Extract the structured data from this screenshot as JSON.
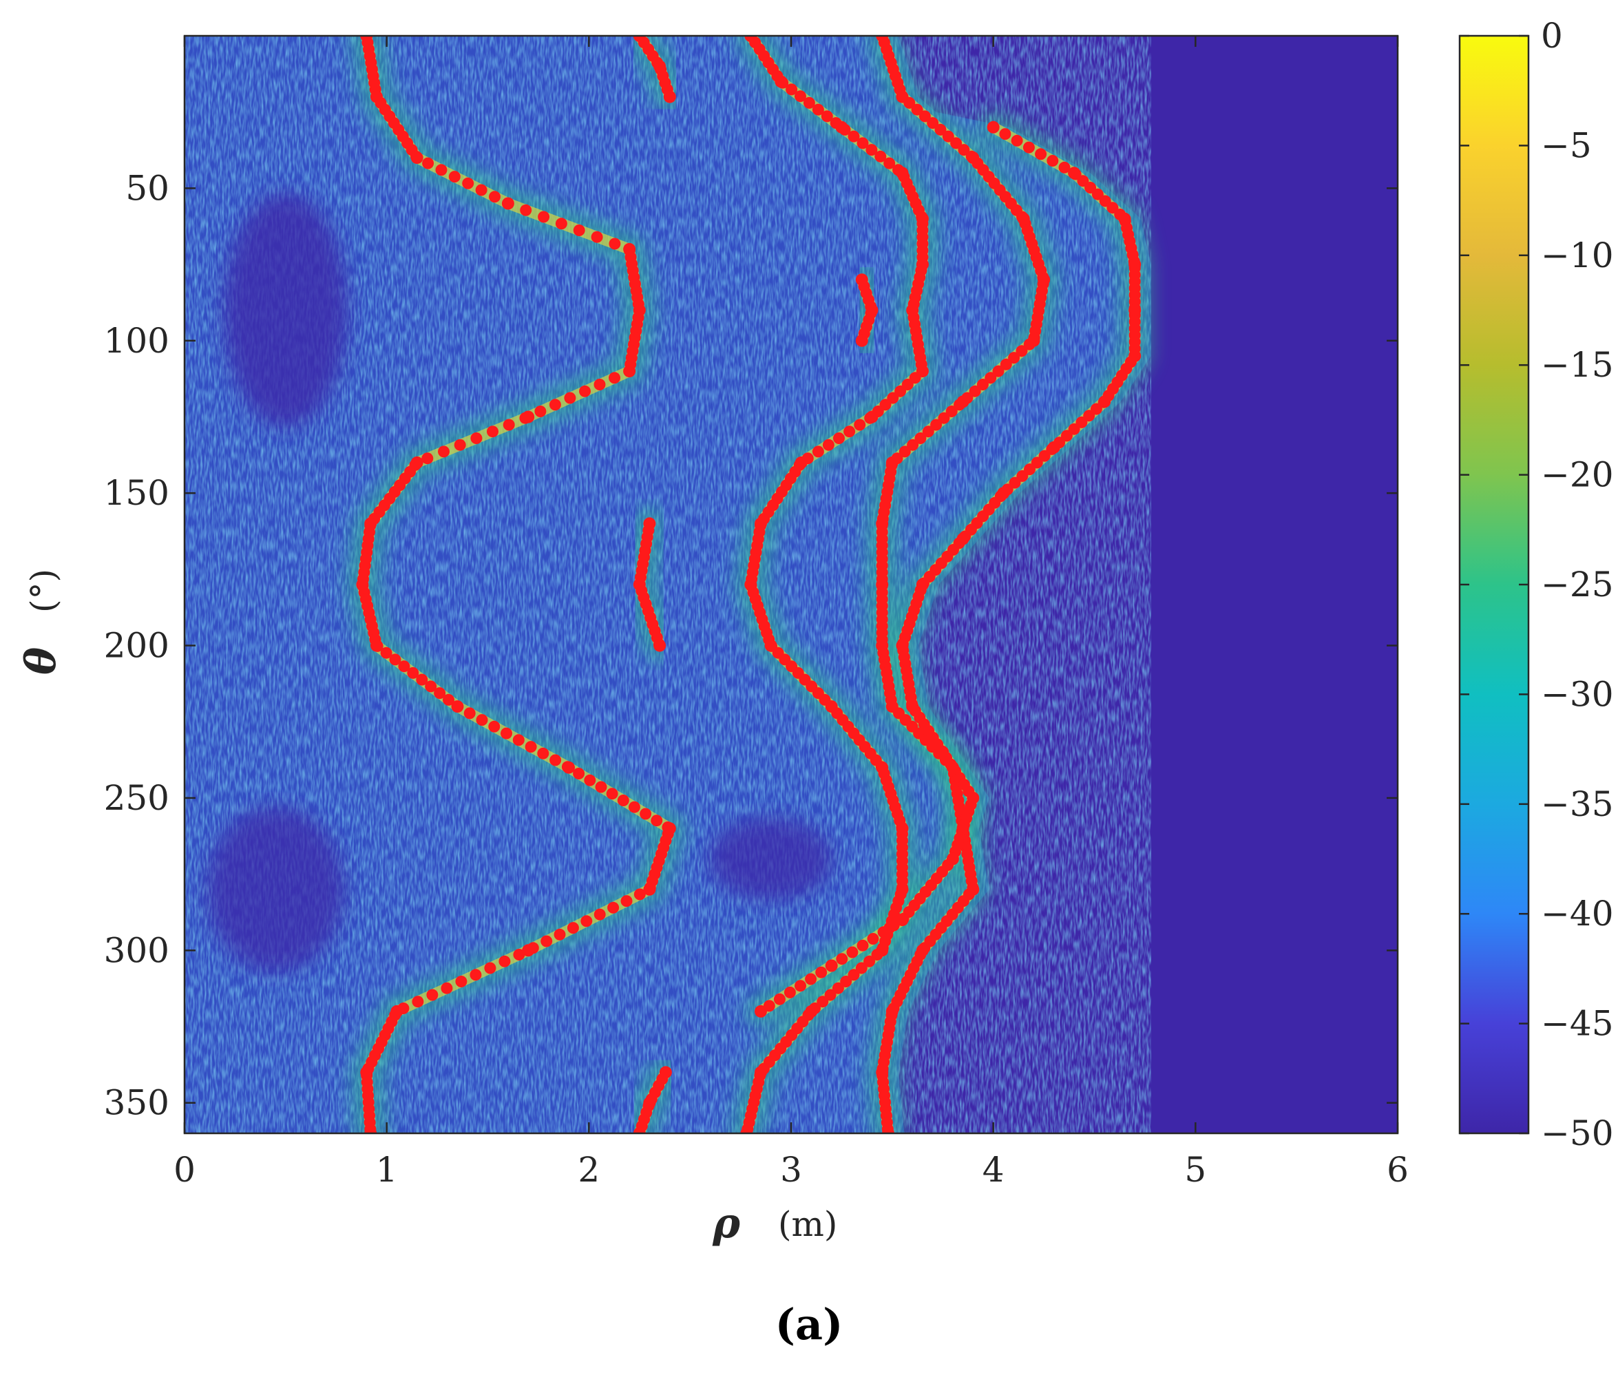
{
  "chart_data": {
    "type": "heatmap",
    "panel_label": "(a)",
    "xlabel": {
      "symbol": "ρ",
      "unit": "(m)"
    },
    "ylabel": {
      "symbol": "θ",
      "unit": "(°)"
    },
    "xlim": [
      0,
      6
    ],
    "ylim": [
      0,
      360
    ],
    "y_reversed": true,
    "x_ticks": [
      0,
      1,
      2,
      3,
      4,
      5,
      6
    ],
    "y_ticks": [
      50,
      100,
      150,
      200,
      250,
      300,
      350
    ],
    "colorbar": {
      "colormap": "parula",
      "range": [
        -50,
        0
      ],
      "ticks": [
        0,
        -5,
        -10,
        -15,
        -20,
        -25,
        -30,
        -35,
        -40,
        -45,
        -50
      ],
      "tick_labels": [
        "0",
        "−5",
        "−10",
        "−15",
        "−20",
        "−25",
        "−30",
        "−35",
        "−40",
        "−45",
        "−50"
      ]
    },
    "background_value": -50,
    "marker_color": "#ff1a1a",
    "colors": {
      "background": "#3e26a8",
      "yellow": "#f9fb0e",
      "axis": "#262626"
    },
    "ridges": [
      {
        "id": "ridge-1",
        "theta": [
          0,
          20,
          40,
          55,
          70,
          90,
          110,
          125,
          140,
          160,
          180,
          200,
          220,
          240,
          260,
          280,
          300,
          320,
          340,
          360
        ],
        "rho": [
          0.9,
          0.95,
          1.15,
          1.6,
          2.2,
          2.25,
          2.2,
          1.7,
          1.15,
          0.92,
          0.88,
          0.95,
          1.35,
          1.9,
          2.4,
          2.3,
          1.7,
          1.05,
          0.9,
          0.92
        ]
      },
      {
        "id": "ridge-2",
        "theta": [
          0,
          10,
          20
        ],
        "rho": [
          2.25,
          2.35,
          2.4
        ]
      },
      {
        "id": "ridge-3",
        "theta": [
          160,
          180,
          200
        ],
        "rho": [
          2.3,
          2.25,
          2.35
        ]
      },
      {
        "id": "ridge-4",
        "theta": [
          340,
          350,
          360
        ],
        "rho": [
          2.38,
          2.3,
          2.25
        ]
      },
      {
        "id": "ridge-5",
        "theta": [
          0,
          15,
          30,
          45,
          60,
          75,
          90,
          110,
          125,
          140,
          160,
          180,
          200,
          220,
          240,
          260,
          280,
          300,
          320,
          340,
          360
        ],
        "rho": [
          2.8,
          2.95,
          3.25,
          3.55,
          3.65,
          3.65,
          3.6,
          3.65,
          3.4,
          3.05,
          2.85,
          2.8,
          2.9,
          3.2,
          3.45,
          3.55,
          3.55,
          3.45,
          3.1,
          2.85,
          2.78
        ]
      },
      {
        "id": "ridge-6",
        "theta": [
          0,
          20,
          40,
          60,
          80,
          100,
          120,
          140,
          160,
          180,
          200,
          220,
          240,
          260,
          280,
          300,
          320,
          340,
          360
        ],
        "rho": [
          3.45,
          3.55,
          3.9,
          4.15,
          4.25,
          4.2,
          3.85,
          3.5,
          3.45,
          3.45,
          3.45,
          3.5,
          3.8,
          3.85,
          3.9,
          3.65,
          3.5,
          3.45,
          3.48
        ]
      },
      {
        "id": "ridge-7",
        "theta": [
          30,
          45,
          60,
          75,
          90,
          105,
          120,
          135,
          150,
          165,
          180,
          200,
          220,
          235,
          250,
          270,
          290,
          305,
          320
        ],
        "rho": [
          4.0,
          4.4,
          4.65,
          4.7,
          4.7,
          4.7,
          4.55,
          4.3,
          4.05,
          3.85,
          3.65,
          3.55,
          3.6,
          3.75,
          3.9,
          3.8,
          3.55,
          3.2,
          2.85
        ]
      },
      {
        "id": "ridge-8",
        "theta": [
          80,
          90,
          100
        ],
        "rho": [
          3.35,
          3.4,
          3.35
        ]
      }
    ]
  }
}
